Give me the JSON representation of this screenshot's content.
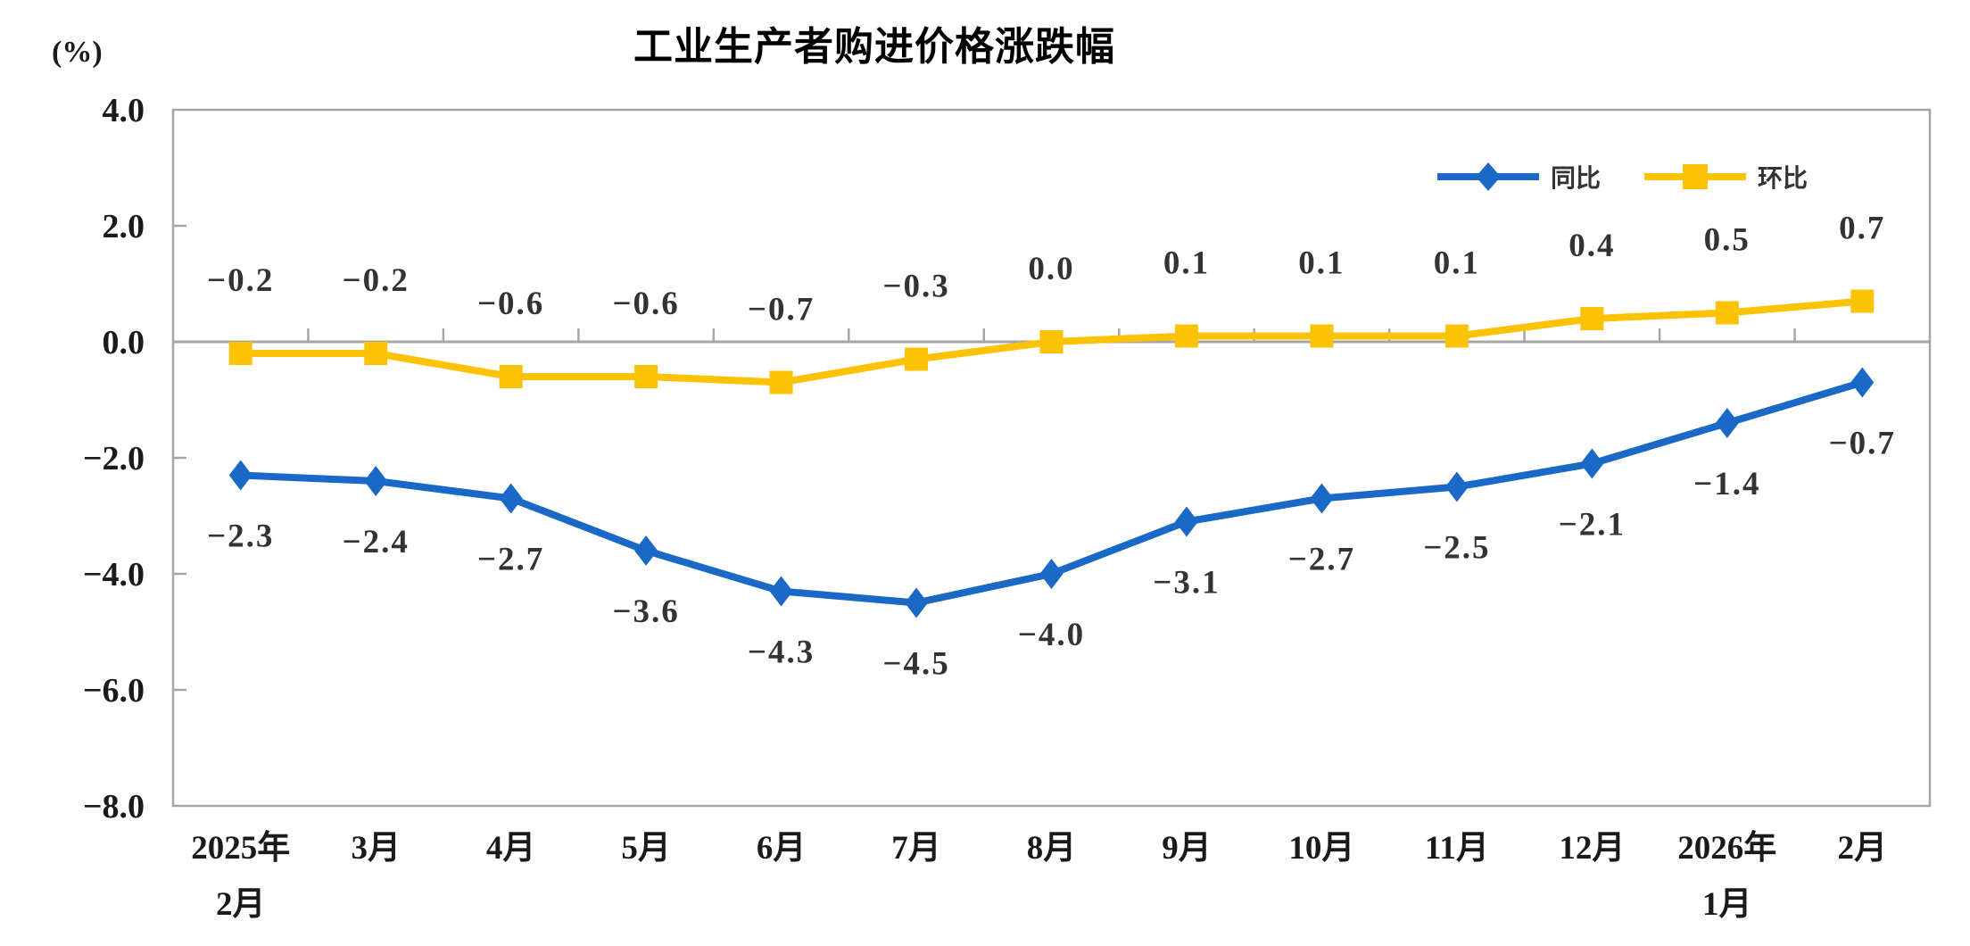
{
  "chart_data": {
    "type": "line",
    "title": "工业生产者购进价格涨跌幅",
    "unit_label": "(%)",
    "categories": [
      [
        "2025年",
        "2月"
      ],
      [
        "3月"
      ],
      [
        "4月"
      ],
      [
        "5月"
      ],
      [
        "6月"
      ],
      [
        "7月"
      ],
      [
        "8月"
      ],
      [
        "9月"
      ],
      [
        "10月"
      ],
      [
        "11月"
      ],
      [
        "12月"
      ],
      [
        "2026年",
        "1月"
      ],
      [
        "2月"
      ]
    ],
    "series": [
      {
        "name": "同比",
        "color": "#1A69C6",
        "marker": "diamond",
        "label_position": "below",
        "values": [
          -2.3,
          -2.4,
          -2.7,
          -3.6,
          -4.3,
          -4.5,
          -4.0,
          -3.1,
          -2.7,
          -2.5,
          -2.1,
          -1.4,
          -0.7
        ],
        "labels": [
          "−2.3",
          "−2.4",
          "−2.7",
          "−3.6",
          "−4.3",
          "−4.5",
          "−4.0",
          "−3.1",
          "−2.7",
          "−2.5",
          "−2.1",
          "−1.4",
          "−0.7"
        ]
      },
      {
        "name": "环比",
        "color": "#FCC204",
        "marker": "square",
        "label_position": "above",
        "values": [
          -0.2,
          -0.2,
          -0.6,
          -0.6,
          -0.7,
          -0.3,
          0.0,
          0.1,
          0.1,
          0.1,
          0.4,
          0.5,
          0.7
        ],
        "labels": [
          "−0.2",
          "−0.2",
          "−0.6",
          "−0.6",
          "−0.7",
          "−0.3",
          "0.0",
          "0.1",
          "0.1",
          "0.1",
          "0.4",
          "0.5",
          "0.7"
        ]
      }
    ],
    "y_axis": {
      "min": -8.0,
      "max": 4.0,
      "tick_step": 2.0,
      "tick_labels": [
        "4.0",
        "2.0",
        "0.0",
        "−2.0",
        "−4.0",
        "−6.0",
        "−8.0"
      ]
    },
    "legend": {
      "position": "top-right-inside",
      "entries": [
        "同比",
        "环比"
      ]
    },
    "grid": "zero-line-only",
    "axis_color": "#A6A6A6",
    "data_label_color": "#333333",
    "tick_label_color": "#1a1a1a"
  }
}
